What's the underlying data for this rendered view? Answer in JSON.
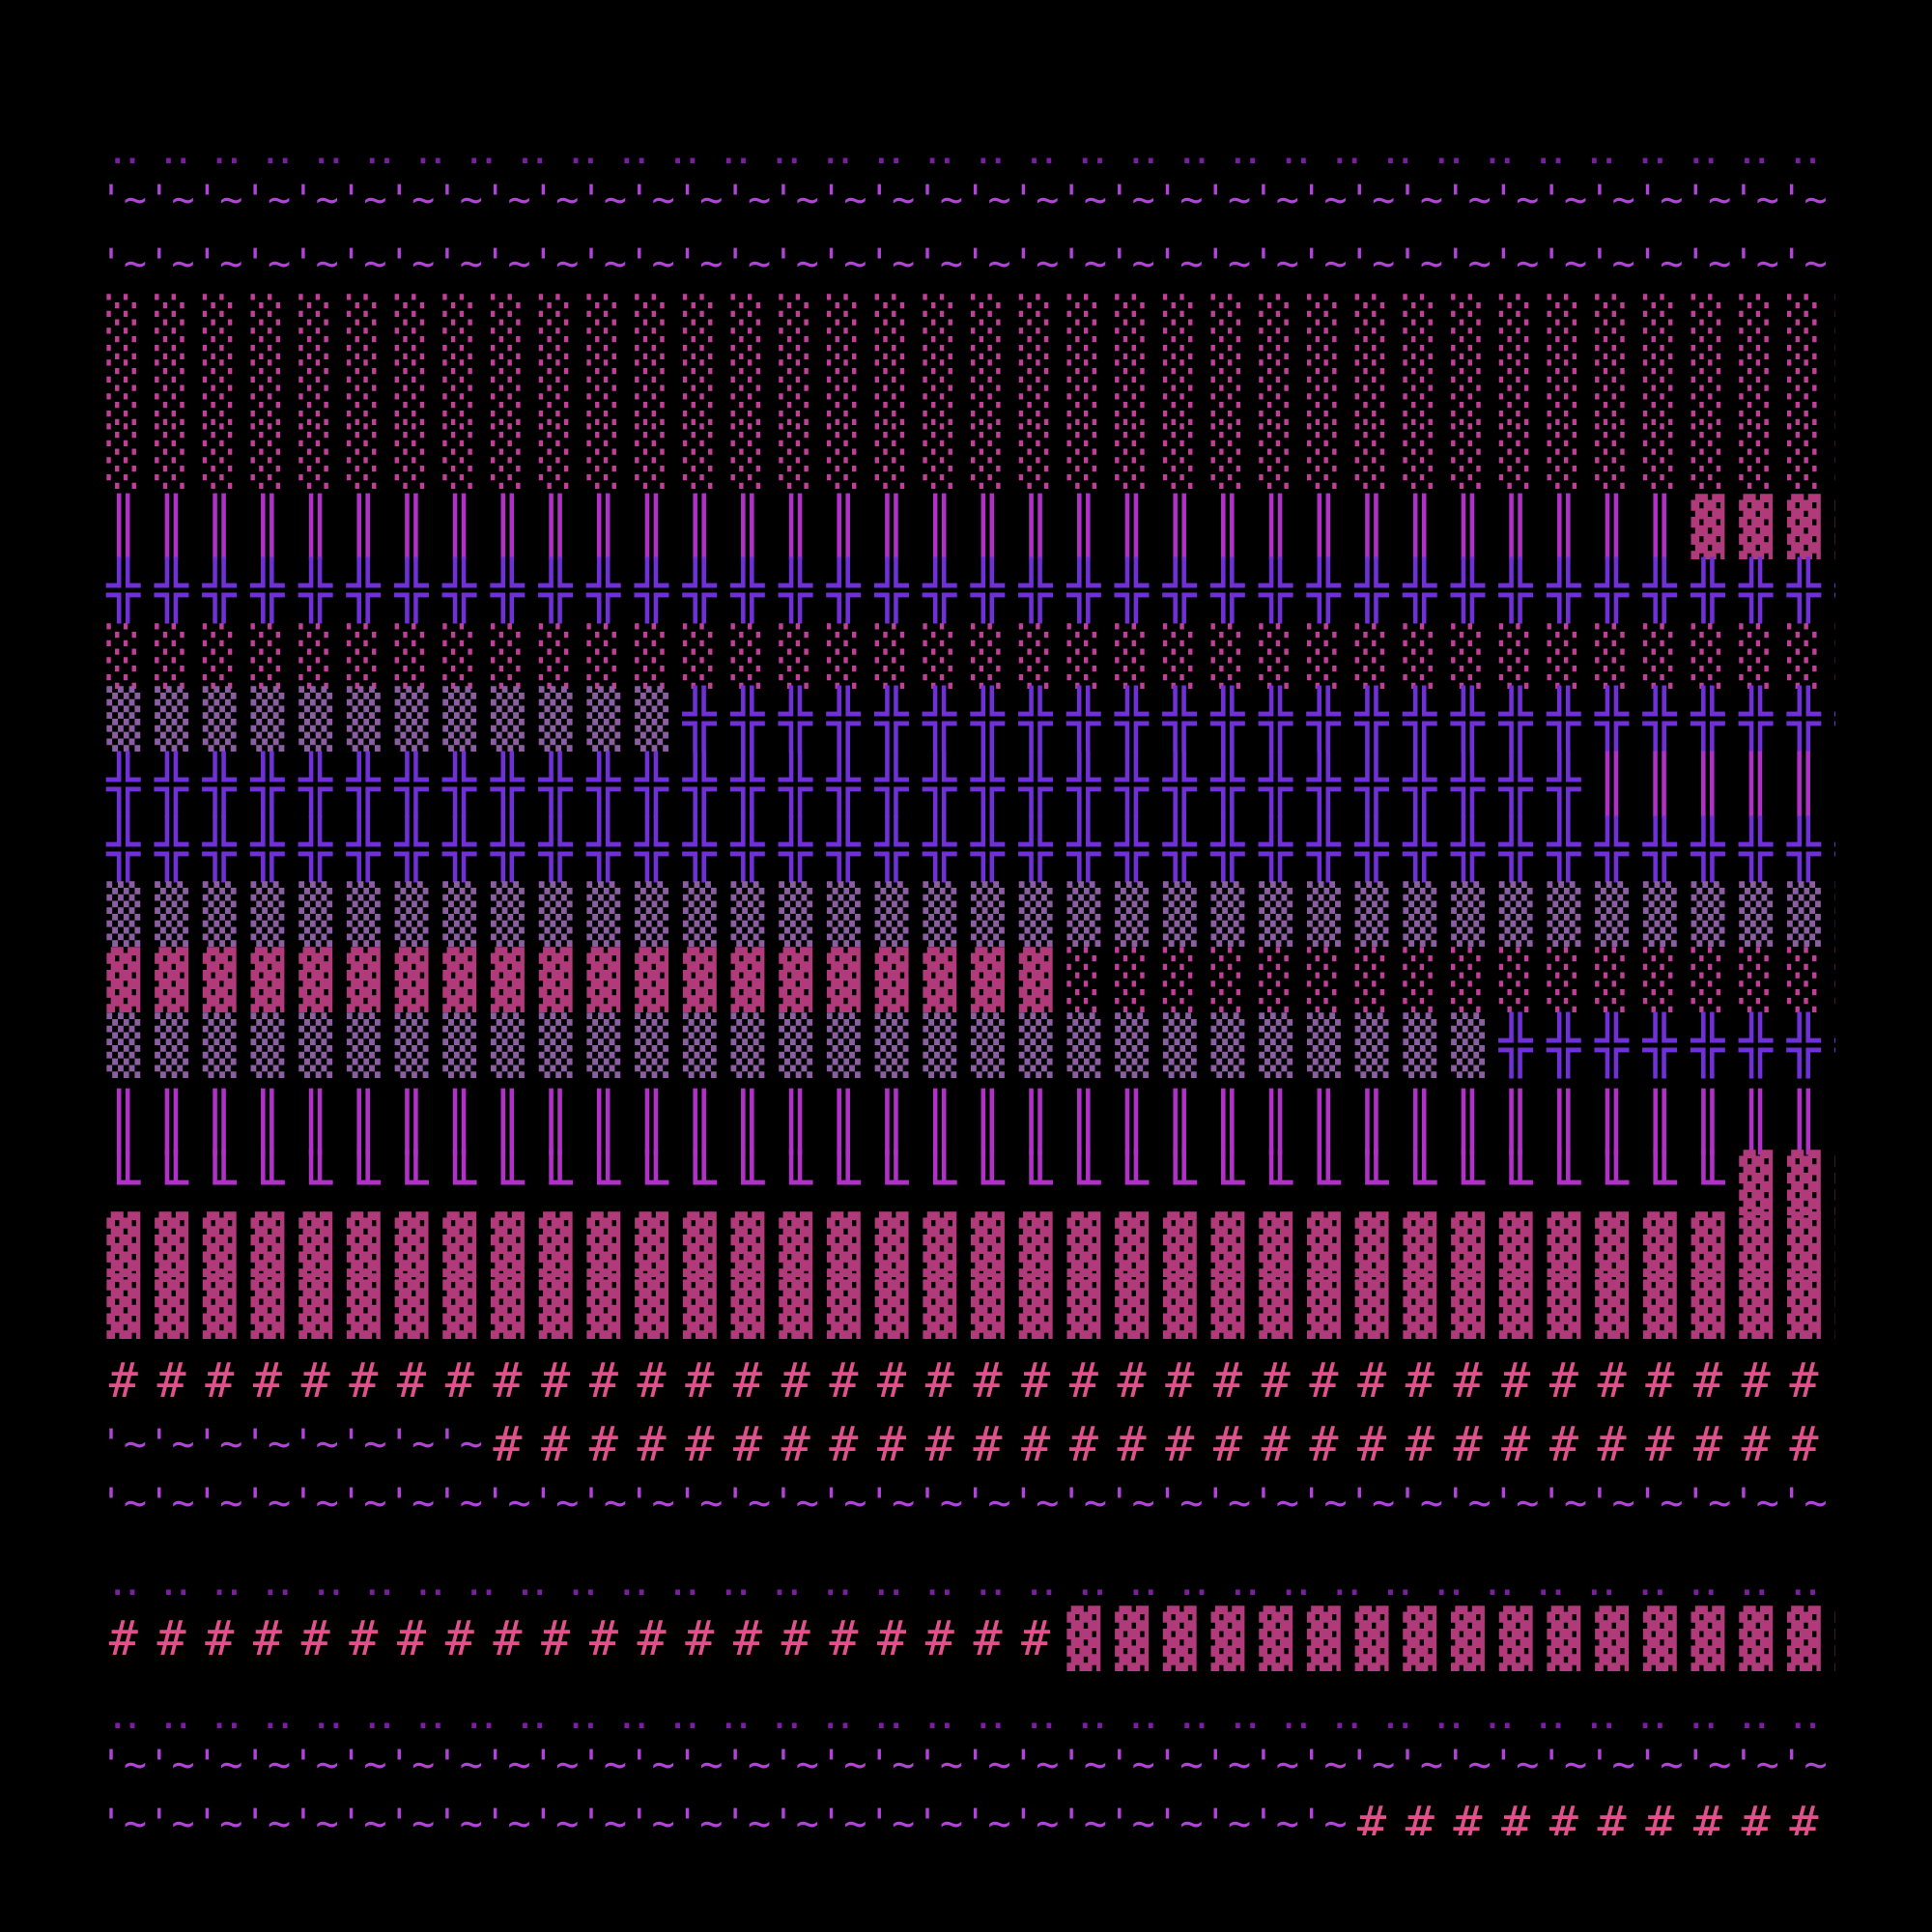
{
  "rows": [
    {
      "segments": [
        {
          "text": "‥‥‥‥‥‥‥‥‥‥‥‥‥‥‥‥‥‥‥‥‥‥‥‥‥‥‥‥‥‥‥‥‥‥‥‥‥",
          "color": "#7b1fa2"
        }
      ]
    },
    {
      "segments": [
        {
          "text": "'~'~'~'~'~'~'~'~'~'~'~'~'~'~'~'~'~'~'~'~'~'~'~'~'~'~'~'~'~'~'~'~'~'~'~'~'~",
          "color": "#b044d6"
        }
      ]
    },
    {
      "segments": [
        {
          "text": "'~'~'~'~'~'~'~'~'~'~'~'~'~'~'~'~'~'~'~'~'~'~'~'~'~'~'~'~'~'~'~'~'~'~'~'~'~",
          "color": "#b044d6"
        }
      ]
    },
    {
      "segments": [
        {
          "text": "░░░░░░░░░░░░░░░░░░░░░░░░░░░░░░░░░░░░░",
          "color": "#c04098"
        }
      ]
    },
    {
      "segments": [
        {
          "text": "░░░░░░░░░░░░░░░░░░░░░░░░░░░░░░░░░░░░░",
          "color": "#c04098"
        }
      ]
    },
    {
      "segments": [
        {
          "text": "░░░░░░░░░░░░░░░░░░░░░░░░░░░░░░░░░░░░░",
          "color": "#c04098"
        }
      ]
    },
    {
      "segments": [
        {
          "text": "║║║║║║║║║║║║║║║║║║║║║║║║║║║║║║║║║",
          "color": "#b030c8"
        },
        {
          "text": "▓▓▓▓",
          "color": "#b03a7a"
        }
      ]
    },
    {
      "segments": [
        {
          "text": "╬╬╬╬╬╬╬╬╬╬╬╬╬╬╬╬╬╬╬╬╬╬╬╬╬╬╬╬╬╬╬╬╬╬╬╬╬",
          "color": "#7030d8"
        }
      ]
    },
    {
      "segments": [
        {
          "text": "░░░░░░░░░░░░░░░░░░░░░░░░░░░░░░░░░░░░░",
          "color": "#c04098"
        }
      ]
    },
    {
      "segments": [
        {
          "text": "▒▒▒▒▒▒▒▒▒▒▒▒",
          "color": "#8a5ea0"
        },
        {
          "text": "╬╬╬╬╬╬╬╬╬╬╬╬╬╬╬╬╬╬╬╬╬╬╬╬╬",
          "color": "#7030d8"
        }
      ]
    },
    {
      "segments": [
        {
          "text": "╬╬╬╬╬╬╬╬╬╬╬╬╬╬╬╬╬╬╬╬╬╬╬╬╬╬╬╬╬╬╬",
          "color": "#7030d8"
        },
        {
          "text": "║║║║║║",
          "color": "#b030c8"
        }
      ]
    },
    {
      "segments": [
        {
          "text": "╬╬╬╬╬╬╬╬╬╬╬╬╬╬╬╬╬╬╬╬╬╬╬╬╬╬╬╬╬╬╬╬╬╬╬╬╬",
          "color": "#7030d8"
        }
      ]
    },
    {
      "segments": [
        {
          "text": "▒▒▒▒▒▒▒▒▒▒▒▒▒▒▒▒▒▒▒▒▒▒▒▒▒▒▒▒▒▒▒▒▒▒▒▒▒",
          "color": "#8a5ea0"
        }
      ]
    },
    {
      "segments": [
        {
          "text": "▓▓▓▓▓▓▓▓▓▓▓▓▓▓▓▓▓▓▓▓",
          "color": "#b03a7a"
        },
        {
          "text": "░░░░░░░░░░░░░░░░░",
          "color": "#c04098"
        }
      ]
    },
    {
      "segments": [
        {
          "text": "▒▒▒▒▒▒▒▒▒▒▒▒▒▒▒▒▒▒▒▒▒▒▒▒▒▒▒▒▒",
          "color": "#8a5ea0"
        },
        {
          "text": "╬╬╬╬╬╬╬╬",
          "color": "#7030d8"
        }
      ]
    },
    {
      "segments": [
        {
          "text": "║║║║║║║║║║║║║║║║║║║║║║║║║║║║║║║║║║║║║",
          "color": "#b030c8"
        }
      ]
    },
    {
      "segments": [
        {
          "text": "╙╙╙╙╙╙╙╙╙╙╙╙╙╙╙╙╙╙╙╙╙╙╙╙╙╙╙╙╙╙╙╙╙╙",
          "color": "#b030c8"
        },
        {
          "text": "▓▓▓",
          "color": "#b03a7a"
        }
      ]
    },
    {
      "segments": [
        {
          "text": "▓▓▓▓▓▓▓▓▓▓▓▓▓▓▓▓▓▓▓▓▓▓▓▓▓▓▓▓▓▓▓▓▓▓▓▓▓",
          "color": "#b03a7a"
        }
      ]
    },
    {
      "segments": [
        {
          "text": "▓▓▓▓▓▓▓▓▓▓▓▓▓▓▓▓▓▓▓▓▓▓▓▓▓▓▓▓▓▓▓▓▓▓▓▓▓",
          "color": "#b03a7a"
        }
      ]
    },
    {
      "segments": [
        {
          "text": "#####################################",
          "color": "#e0508a"
        }
      ]
    },
    {
      "segments": [
        {
          "text": "'~'~'~'~'~'~'~'~",
          "color": "#b044d6"
        },
        {
          "text": "#############################",
          "color": "#e0508a"
        }
      ]
    },
    {
      "segments": [
        {
          "text": "'~'~'~'~'~'~'~'~'~'~'~'~'~'~'~'~'~'~'~'~'~'~'~'~'~'~'~'~'~'~'~'~'~'~'~'~'~",
          "color": "#b044d6"
        }
      ]
    },
    {
      "segments": [
        {
          "text": "‥‥‥‥‥‥‥‥‥‥‥‥‥‥‥‥‥‥‥‥‥‥‥‥‥‥‥‥‥‥‥‥‥‥‥‥‥",
          "color": "#7b1fa2"
        }
      ]
    },
    {
      "segments": [
        {
          "text": "####################",
          "color": "#e0508a"
        },
        {
          "text": "▓▓▓▓▓▓▓▓▓▓▓▓▓▓▓▓▓",
          "color": "#b03a7a"
        }
      ]
    },
    {
      "segments": [
        {
          "text": "‥‥‥‥‥‥‥‥‥‥‥‥‥‥‥‥‥‥‥‥‥‥‥‥‥‥‥‥‥‥‥‥‥‥‥‥‥",
          "color": "#7b1fa2"
        }
      ]
    },
    {
      "segments": [
        {
          "text": "'~'~'~'~'~'~'~'~'~'~'~'~'~'~'~'~'~'~'~'~'~'~'~'~'~'~'~'~'~'~'~'~'~'~'~'~'~",
          "color": "#b044d6"
        }
      ]
    },
    {
      "segments": [
        {
          "text": "'~'~'~'~'~'~'~'~'~'~'~'~'~'~'~'~'~'~'~'~'~'~'~'~'~'~",
          "color": "#b044d6"
        },
        {
          "text": "###########",
          "color": "#e0508a"
        }
      ]
    }
  ]
}
